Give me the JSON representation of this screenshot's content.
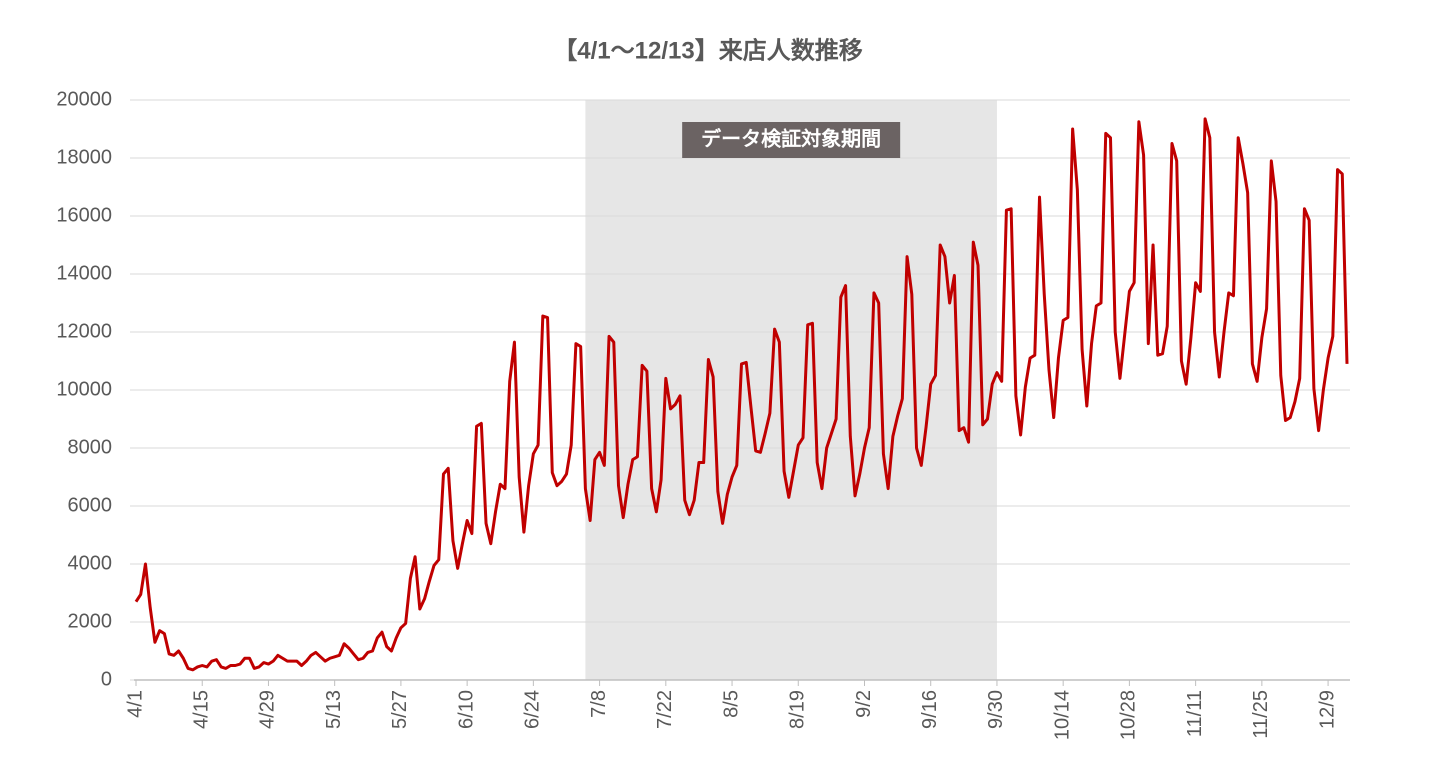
{
  "chart_data": {
    "type": "line",
    "title": "【4/1〜12/13】来店人数推移",
    "categories": [
      "4/1",
      null,
      null,
      null,
      null,
      null,
      null,
      null,
      null,
      null,
      null,
      null,
      null,
      null,
      "4/15",
      null,
      null,
      null,
      null,
      null,
      null,
      null,
      null,
      null,
      null,
      null,
      null,
      null,
      "4/29",
      null,
      null,
      null,
      null,
      null,
      null,
      null,
      null,
      null,
      null,
      null,
      null,
      null,
      "5/13",
      null,
      null,
      null,
      null,
      null,
      null,
      null,
      null,
      null,
      null,
      null,
      null,
      null,
      "5/27",
      null,
      null,
      null,
      null,
      null,
      null,
      null,
      null,
      null,
      null,
      null,
      null,
      null,
      "6/10",
      null,
      null,
      null,
      null,
      null,
      null,
      null,
      null,
      null,
      null,
      null,
      null,
      null,
      "6/24",
      null,
      null,
      null,
      null,
      null,
      null,
      null,
      null,
      null,
      null,
      null,
      null,
      null,
      "7/8",
      null,
      null,
      null,
      null,
      null,
      null,
      null,
      null,
      null,
      null,
      null,
      null,
      null,
      "7/22",
      null,
      null,
      null,
      null,
      null,
      null,
      null,
      null,
      null,
      null,
      null,
      null,
      null,
      "8/5",
      null,
      null,
      null,
      null,
      null,
      null,
      null,
      null,
      null,
      null,
      null,
      null,
      null,
      "8/19",
      null,
      null,
      null,
      null,
      null,
      null,
      null,
      null,
      null,
      null,
      null,
      null,
      null,
      "9/2",
      null,
      null,
      null,
      null,
      null,
      null,
      null,
      null,
      null,
      null,
      null,
      null,
      null,
      "9/16",
      null,
      null,
      null,
      null,
      null,
      null,
      null,
      null,
      null,
      null,
      null,
      null,
      null,
      "9/30",
      null,
      null,
      null,
      null,
      null,
      null,
      null,
      null,
      null,
      null,
      null,
      null,
      null,
      "10/14",
      null,
      null,
      null,
      null,
      null,
      null,
      null,
      null,
      null,
      null,
      null,
      null,
      null,
      "10/28",
      null,
      null,
      null,
      null,
      null,
      null,
      null,
      null,
      null,
      null,
      null,
      null,
      null,
      "11/11",
      null,
      null,
      null,
      null,
      null,
      null,
      null,
      null,
      null,
      null,
      null,
      null,
      null,
      "11/25",
      null,
      null,
      null,
      null,
      null,
      null,
      null,
      null,
      null,
      null,
      null,
      null,
      null,
      "12/9",
      null,
      null,
      null,
      null
    ],
    "values": [
      2700,
      2950,
      4000,
      2500,
      1300,
      1700,
      1600,
      900,
      850,
      1000,
      750,
      400,
      350,
      450,
      500,
      450,
      650,
      700,
      450,
      400,
      500,
      500,
      550,
      750,
      750,
      400,
      450,
      600,
      550,
      650,
      850,
      750,
      650,
      650,
      650,
      500,
      650,
      850,
      950,
      800,
      650,
      750,
      800,
      850,
      1250,
      1100,
      900,
      700,
      750,
      950,
      1000,
      1450,
      1650,
      1150,
      1000,
      1450,
      1800,
      1950,
      3500,
      4250,
      2450,
      2800,
      3400,
      3950,
      4150,
      7100,
      7300,
      4800,
      3850,
      4700,
      5500,
      5050,
      8750,
      8850,
      5400,
      4700,
      5800,
      6750,
      6600,
      10300,
      11650,
      7000,
      5100,
      6700,
      7800,
      8100,
      12550,
      12500,
      7150,
      6700,
      6850,
      7100,
      8100,
      11600,
      11500,
      6600,
      5500,
      7600,
      7850,
      7400,
      11850,
      11650,
      6700,
      5600,
      6750,
      7600,
      7700,
      10850,
      10650,
      6600,
      5800,
      6900,
      10400,
      9350,
      9500,
      9800,
      6200,
      5700,
      6200,
      7500,
      7500,
      11050,
      10450,
      6500,
      5400,
      6400,
      7000,
      7400,
      10900,
      10950,
      9400,
      7900,
      7850,
      8500,
      9200,
      12100,
      11650,
      7200,
      6300,
      7200,
      8100,
      8350,
      12250,
      12300,
      7500,
      6600,
      8000,
      8500,
      9000,
      13200,
      13600,
      8400,
      6350,
      7100,
      8000,
      8700,
      13350,
      13000,
      7800,
      6600,
      8400,
      9100,
      9700,
      14600,
      13300,
      8000,
      7400,
      8700,
      10200,
      10500,
      15000,
      14600,
      13000,
      13950,
      8600,
      8700,
      8200,
      15100,
      14300,
      8800,
      9000,
      10200,
      10600,
      10300,
      16200,
      16250,
      9800,
      8450,
      10100,
      11100,
      11200,
      16650,
      13300,
      10700,
      9050,
      11100,
      12400,
      12500,
      19000,
      16900,
      11400,
      9450,
      11600,
      12900,
      13000,
      18850,
      18700,
      12000,
      10400,
      11900,
      13400,
      13700,
      19250,
      18100,
      11600,
      15000,
      11200,
      11250,
      12200,
      18500,
      17900,
      11000,
      10200,
      11800,
      13700,
      13400,
      19350,
      18700,
      12000,
      10450,
      12000,
      13350,
      13250,
      18700,
      17800,
      16800,
      10900,
      10300,
      11800,
      12800,
      17900,
      16500,
      10500,
      8950,
      9050,
      9600,
      10400,
      16250,
      15850,
      10050,
      8600,
      10000,
      11100,
      11850,
      17600,
      17450,
      10900
    ],
    "color": "#c00000",
    "ylim": [
      0,
      20000
    ],
    "yticks": [
      0,
      2000,
      4000,
      6000,
      8000,
      10000,
      12000,
      14000,
      16000,
      18000,
      20000
    ],
    "grid": true,
    "highlight": {
      "label": "データ検証対象期間",
      "start": 95,
      "end": 182
    }
  }
}
